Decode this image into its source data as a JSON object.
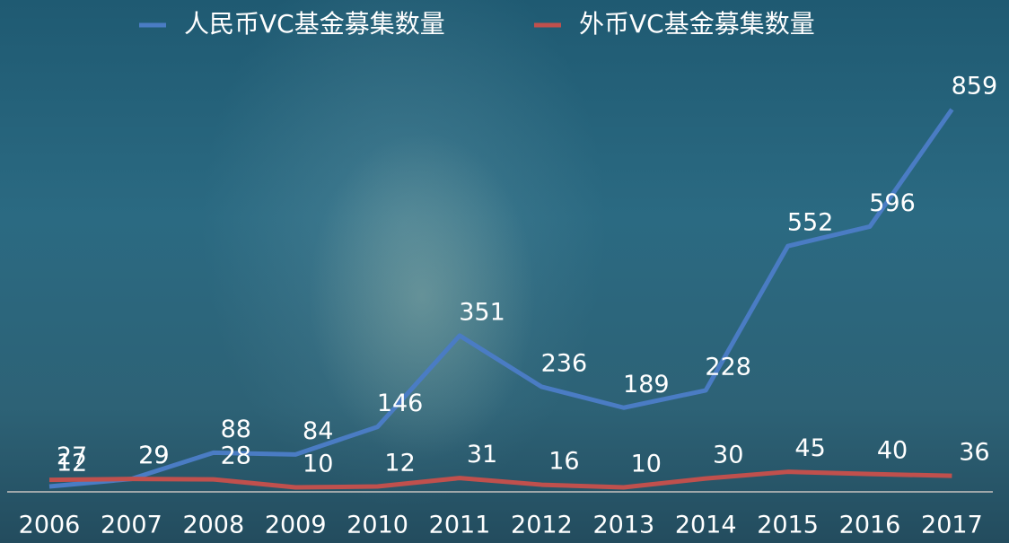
{
  "chart_data": {
    "type": "line",
    "categories": [
      "2006",
      "2007",
      "2008",
      "2009",
      "2010",
      "2011",
      "2012",
      "2013",
      "2014",
      "2015",
      "2016",
      "2017"
    ],
    "series": [
      {
        "name": "人民币VC基金募集数量",
        "color": "#4a7cc4",
        "values": [
          12,
          29,
          88,
          84,
          146,
          351,
          236,
          189,
          228,
          552,
          596,
          859
        ]
      },
      {
        "name": "外币VC基金募集数量",
        "color": "#c0504d",
        "values": [
          27,
          29,
          28,
          10,
          12,
          31,
          16,
          10,
          30,
          45,
          40,
          36
        ]
      }
    ],
    "legend": "top"
  }
}
